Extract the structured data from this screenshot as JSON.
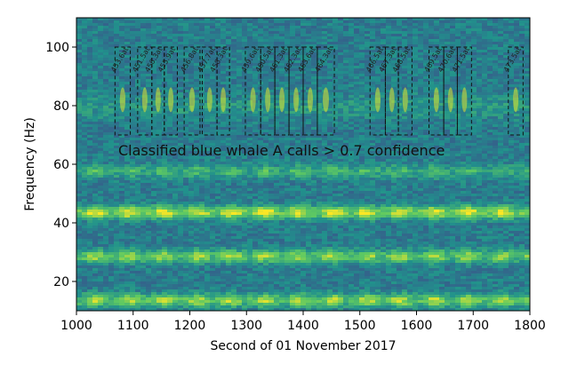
{
  "chart_data": {
    "type": "heatmap",
    "title": "",
    "xlabel": "Second of 01 November 2017",
    "ylabel": "Frequency (Hz)",
    "xlim": [
      1000,
      1800
    ],
    "ylim": [
      10,
      110
    ],
    "xticks": [
      1000,
      1100,
      1200,
      1300,
      1400,
      1500,
      1600,
      1700,
      1800
    ],
    "yticks": [
      20,
      40,
      60,
      80,
      100
    ],
    "colormap": "viridis",
    "annotation": "Classified blue whale A calls > 0.7 confidence",
    "call_band_hz": [
      70,
      100
    ],
    "bands": [
      {
        "name": "A-call band",
        "center_hz": 80,
        "intensity": 0.55
      },
      {
        "name": "60 Hz band",
        "center_hz": 58,
        "intensity": 0.45
      },
      {
        "name": "45 Hz band",
        "center_hz": 44,
        "intensity": 0.95
      },
      {
        "name": "30 Hz band",
        "center_hz": 29,
        "intensity": 0.75
      },
      {
        "name": "15 Hz band",
        "center_hz": 14,
        "intensity": 0.8
      }
    ],
    "detections": [
      {
        "start_s": 1068,
        "end_s": 1095,
        "label": "453.6at"
      },
      {
        "start_s": 1108,
        "end_s": 1133,
        "label": "451.5at"
      },
      {
        "start_s": 1133,
        "end_s": 1155,
        "label": "456.3at"
      },
      {
        "start_s": 1155,
        "end_s": 1178,
        "label": "455.9at"
      },
      {
        "start_s": 1190,
        "end_s": 1218,
        "label": "456.8at"
      },
      {
        "start_s": 1222,
        "end_s": 1248,
        "label": "457.7at"
      },
      {
        "start_s": 1248,
        "end_s": 1270,
        "label": "458.3at"
      },
      {
        "start_s": 1298,
        "end_s": 1325,
        "label": "459.6at"
      },
      {
        "start_s": 1325,
        "end_s": 1350,
        "label": "460.5at"
      },
      {
        "start_s": 1350,
        "end_s": 1375,
        "label": "461.3at"
      },
      {
        "start_s": 1375,
        "end_s": 1400,
        "label": "462.3at"
      },
      {
        "start_s": 1400,
        "end_s": 1425,
        "label": "463.6at"
      },
      {
        "start_s": 1425,
        "end_s": 1455,
        "label": "464.3at"
      },
      {
        "start_s": 1518,
        "end_s": 1545,
        "label": "466.5at"
      },
      {
        "start_s": 1545,
        "end_s": 1568,
        "label": "467.3at"
      },
      {
        "start_s": 1568,
        "end_s": 1592,
        "label": "468.5at"
      },
      {
        "start_s": 1622,
        "end_s": 1648,
        "label": "469.5at"
      },
      {
        "start_s": 1648,
        "end_s": 1672,
        "label": "470.6at"
      },
      {
        "start_s": 1672,
        "end_s": 1697,
        "label": "471.5at"
      },
      {
        "start_s": 1762,
        "end_s": 1788,
        "label": "473.5at"
      }
    ]
  }
}
